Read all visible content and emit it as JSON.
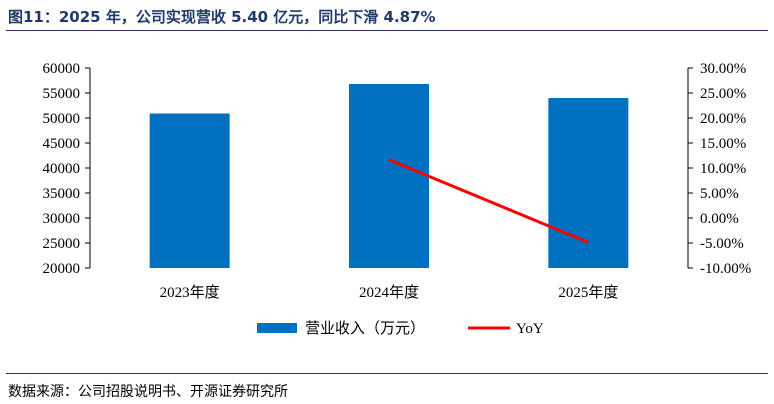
{
  "title": "图11：2025 年，公司实现营收 5.40 亿元，同比下滑 4.87%",
  "source": "数据来源：公司招股说明书、开源证券研究所",
  "colors": {
    "bar": "#0070c0",
    "line": "#ff0000",
    "rule": "#1f3a6b"
  },
  "chart_data": {
    "type": "bar",
    "categories": [
      "2023年度",
      "2024年度",
      "2025年度"
    ],
    "series": [
      {
        "name": "营业收入（万元）",
        "type": "bar",
        "axis": "left",
        "values": [
          50900,
          56800,
          54000
        ]
      },
      {
        "name": "YoY",
        "type": "line",
        "axis": "right",
        "values": [
          null,
          11.64,
          -4.87
        ]
      }
    ],
    "y_left": {
      "min": 20000,
      "max": 60000,
      "step": 5000,
      "ticks": [
        "20000",
        "25000",
        "30000",
        "35000",
        "40000",
        "45000",
        "50000",
        "55000",
        "60000"
      ]
    },
    "y_right": {
      "min": -10,
      "max": 30,
      "step": 5,
      "ticks": [
        "-10.00%",
        "-5.00%",
        "0.00%",
        "5.00%",
        "10.00%",
        "15.00%",
        "20.00%",
        "25.00%",
        "30.00%"
      ]
    },
    "legend_position": "bottom",
    "grid": false
  }
}
